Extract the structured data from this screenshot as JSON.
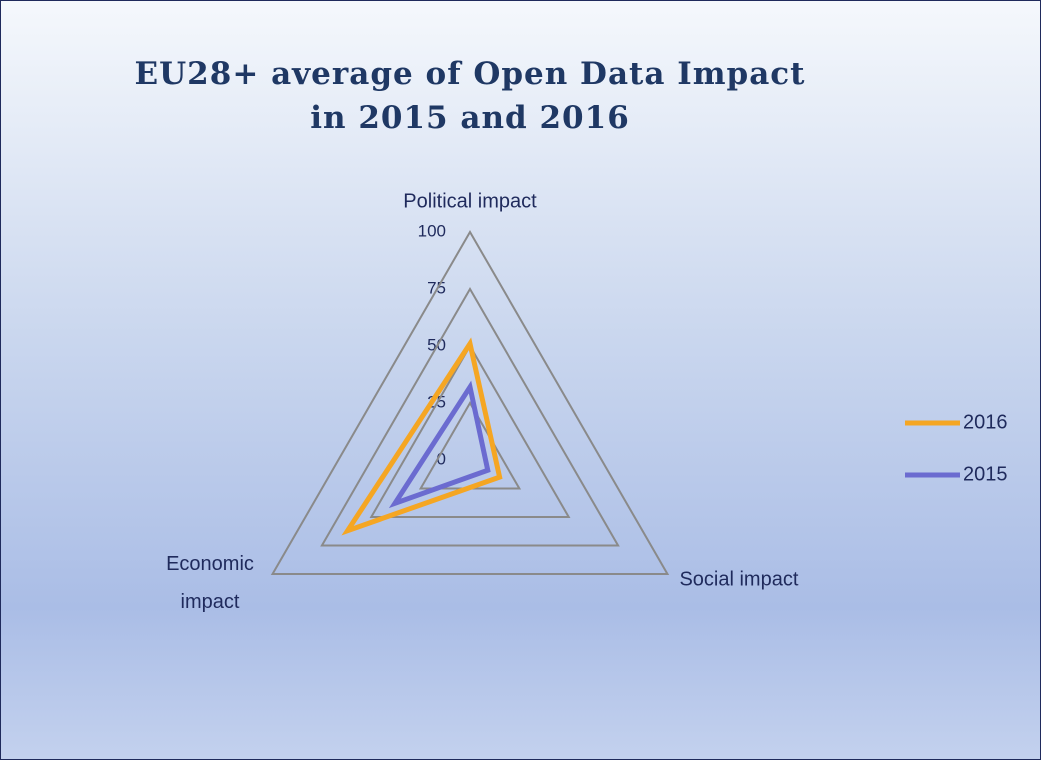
{
  "chart_data": {
    "type": "radar",
    "title": "EU28+ average of Open Data Impact in 2015 and 2016",
    "categories": [
      "Political impact",
      "Social impact",
      "Economic impact"
    ],
    "series": [
      {
        "name": "2016",
        "color": "#f5a623",
        "values": [
          51,
          15,
          62
        ]
      },
      {
        "name": "2015",
        "color": "#6b6bd0",
        "values": [
          32,
          9,
          38
        ]
      }
    ],
    "rlim": [
      0,
      100
    ],
    "rticks": [
      0,
      25,
      50,
      75,
      100
    ],
    "grid": true,
    "legend": "right"
  }
}
